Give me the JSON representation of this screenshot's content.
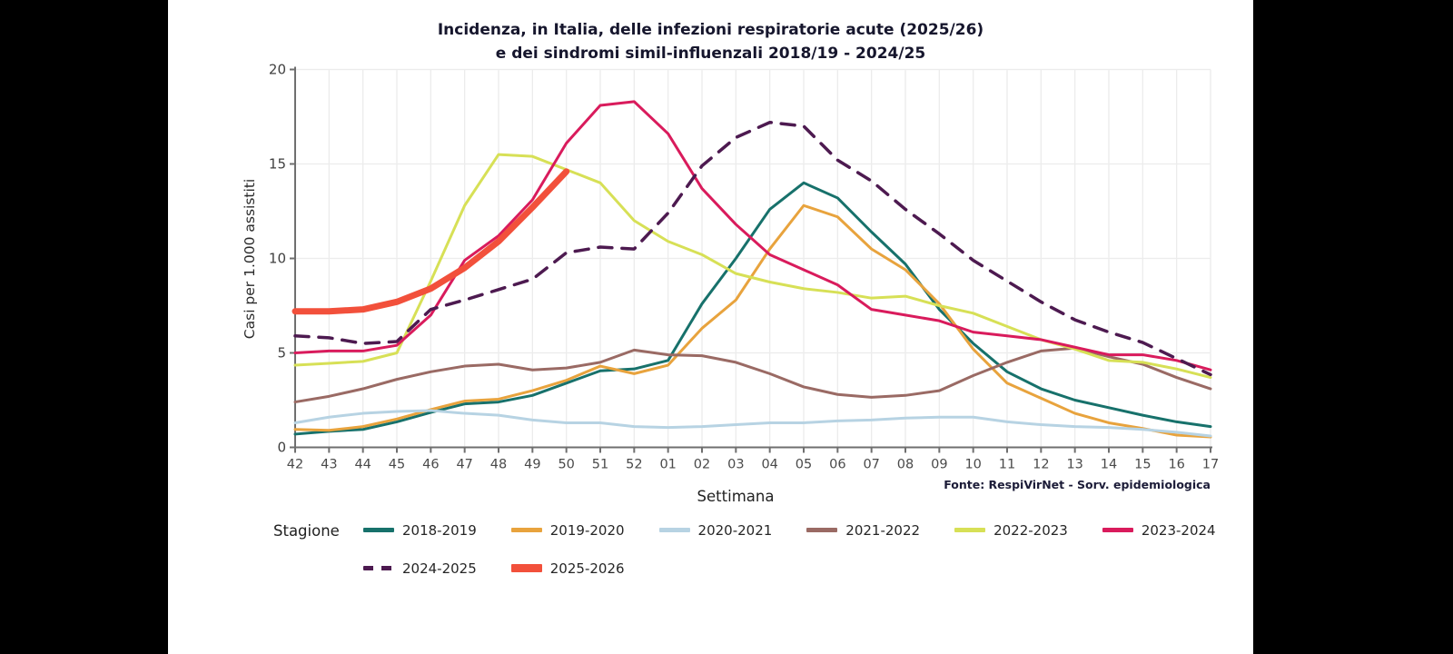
{
  "title_line1": "Incidenza, in Italia, delle infezioni respiratorie acute (2025/26)",
  "title_line2": "e dei sindromi simil-influenzali 2018/19 - 2024/25",
  "source_note": "Fonte: RespiVirNet - Sorv. epidemiologica",
  "legend_title": "Stagione",
  "chart_data": {
    "type": "line",
    "title": "Incidenza, in Italia, delle infezioni respiratorie acute (2025/26) e dei sindromi simil-influenzali 2018/19 - 2024/25",
    "xlabel": "Settimana",
    "ylabel": "Casi per 1.000 assistiti",
    "x": [
      "42",
      "43",
      "44",
      "45",
      "46",
      "47",
      "48",
      "49",
      "50",
      "51",
      "52",
      "01",
      "02",
      "03",
      "04",
      "05",
      "06",
      "07",
      "08",
      "09",
      "10",
      "11",
      "12",
      "13",
      "14",
      "15",
      "16",
      "17"
    ],
    "ylim": [
      0,
      20
    ],
    "yticks": [
      0,
      5,
      10,
      15,
      20
    ],
    "grid": true,
    "legend_position": "bottom",
    "series": [
      {
        "name": "2018-2019",
        "color": "#17716b",
        "style": "solid",
        "width": 3,
        "values": [
          0.7,
          0.85,
          0.95,
          1.35,
          1.85,
          2.3,
          2.4,
          2.75,
          3.4,
          4.05,
          4.15,
          4.6,
          7.6,
          10.0,
          12.6,
          14.0,
          13.2,
          11.4,
          9.7,
          7.3,
          5.5,
          4.0,
          3.1,
          2.5,
          2.1,
          1.7,
          1.35,
          1.1
        ]
      },
      {
        "name": "2019-2020",
        "color": "#e8a33d",
        "style": "solid",
        "width": 3,
        "values": [
          0.95,
          0.9,
          1.1,
          1.5,
          2.0,
          2.45,
          2.55,
          3.0,
          3.55,
          4.3,
          3.9,
          4.35,
          6.3,
          7.8,
          10.5,
          12.8,
          12.2,
          10.5,
          9.4,
          7.6,
          5.2,
          3.4,
          2.6,
          1.8,
          1.3,
          1.0,
          0.65,
          0.55
        ]
      },
      {
        "name": "2020-2021",
        "color": "#b7d3e3",
        "style": "solid",
        "width": 3,
        "values": [
          1.3,
          1.6,
          1.8,
          1.9,
          1.95,
          1.8,
          1.7,
          1.45,
          1.3,
          1.3,
          1.1,
          1.05,
          1.1,
          1.2,
          1.3,
          1.3,
          1.4,
          1.45,
          1.55,
          1.6,
          1.6,
          1.35,
          1.2,
          1.1,
          1.05,
          0.95,
          0.8,
          0.6
        ]
      },
      {
        "name": "2021-2022",
        "color": "#9a6a64",
        "style": "solid",
        "width": 3,
        "values": [
          2.4,
          2.7,
          3.1,
          3.6,
          4.0,
          4.3,
          4.4,
          4.1,
          4.2,
          4.5,
          5.15,
          4.9,
          4.85,
          4.5,
          3.9,
          3.2,
          2.8,
          2.65,
          2.75,
          3.0,
          3.8,
          4.5,
          5.1,
          5.25,
          4.8,
          4.4,
          3.7,
          3.1
        ]
      },
      {
        "name": "2022-2023",
        "color": "#d7e056",
        "style": "solid",
        "width": 3,
        "values": [
          4.35,
          4.45,
          4.55,
          5.0,
          8.8,
          12.8,
          15.5,
          15.4,
          14.7,
          14.0,
          12.0,
          10.9,
          10.2,
          9.2,
          8.75,
          8.4,
          8.2,
          7.9,
          8.0,
          7.5,
          7.1,
          6.4,
          5.7,
          5.2,
          4.6,
          4.5,
          4.15,
          3.7
        ]
      },
      {
        "name": "2023-2024",
        "color": "#d91b5c",
        "style": "solid",
        "width": 3,
        "values": [
          5.0,
          5.1,
          5.1,
          5.4,
          7.0,
          9.9,
          11.2,
          13.1,
          16.1,
          18.1,
          18.3,
          16.6,
          13.7,
          11.8,
          10.2,
          9.4,
          8.6,
          7.3,
          7.0,
          6.7,
          6.1,
          5.9,
          5.7,
          5.3,
          4.9,
          4.9,
          4.6,
          4.1
        ]
      },
      {
        "name": "2024-2025",
        "color": "#4d1a50",
        "style": "dashed",
        "width": 3.5,
        "values": [
          5.9,
          5.8,
          5.5,
          5.6,
          7.3,
          7.8,
          8.35,
          8.9,
          10.3,
          10.6,
          10.5,
          12.4,
          14.9,
          16.4,
          17.2,
          17.0,
          15.2,
          14.1,
          12.6,
          11.3,
          9.9,
          8.8,
          7.7,
          6.75,
          6.1,
          5.55,
          4.7,
          3.85
        ]
      },
      {
        "name": "2025-2026",
        "color": "#f2503b",
        "style": "solid",
        "width": 7,
        "values": [
          7.2,
          7.2,
          7.3,
          7.7,
          8.4,
          9.5,
          10.9,
          12.7,
          14.6
        ]
      }
    ]
  }
}
